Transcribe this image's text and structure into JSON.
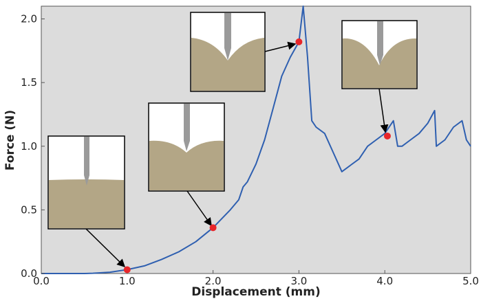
{
  "chart_data": {
    "type": "line",
    "x_label": "Displacement (mm)",
    "y_label": "Force (N)",
    "xlim": [
      0,
      5
    ],
    "ylim": [
      0,
      2.1
    ],
    "xticks": [
      {
        "value": 0,
        "label": "0.0"
      },
      {
        "value": 1,
        "label": "1.0"
      },
      {
        "value": 2,
        "label": "2.0"
      },
      {
        "value": 3,
        "label": "3.0"
      },
      {
        "value": 4,
        "label": "4.0"
      },
      {
        "value": 5,
        "label": "5.0"
      }
    ],
    "yticks": [
      {
        "value": 0,
        "label": "0.0"
      },
      0.5,
      {
        "value": 1,
        "label": "1.0"
      },
      1.5,
      {
        "value": 2,
        "label": "2.0"
      }
    ],
    "grid": false,
    "series": [
      {
        "color": "#2e5fb0",
        "x": [
          0,
          0.5,
          0.6,
          0.8,
          1.0,
          1.2,
          1.4,
          1.6,
          1.8,
          2.0,
          2.2,
          2.3,
          2.35,
          2.4,
          2.5,
          2.6,
          2.7,
          2.8,
          2.9,
          3.0,
          3.05,
          3.1,
          3.15,
          3.2,
          3.3,
          3.4,
          3.5,
          3.6,
          3.7,
          3.8,
          3.9,
          4.0,
          4.1,
          4.15,
          4.2,
          4.3,
          4.4,
          4.5,
          4.58,
          4.6,
          4.7,
          4.8,
          4.9,
          4.95,
          5.0
        ],
        "values": [
          0,
          0,
          0.002,
          0.01,
          0.03,
          0.06,
          0.11,
          0.17,
          0.25,
          0.36,
          0.5,
          0.58,
          0.68,
          0.72,
          0.86,
          1.05,
          1.3,
          1.55,
          1.7,
          1.82,
          2.1,
          1.7,
          1.2,
          1.15,
          1.1,
          0.95,
          0.8,
          0.85,
          0.9,
          1.0,
          1.05,
          1.1,
          1.2,
          1.0,
          1.0,
          1.05,
          1.1,
          1.18,
          1.28,
          1.0,
          1.05,
          1.15,
          1.2,
          1.05,
          1.0
        ]
      },
      {
        "color": "#e8262a",
        "x": [
          1.0,
          2.0,
          3.0,
          4.03
        ],
        "values": [
          0.03,
          0.36,
          1.82,
          1.08
        ]
      }
    ]
  }
}
